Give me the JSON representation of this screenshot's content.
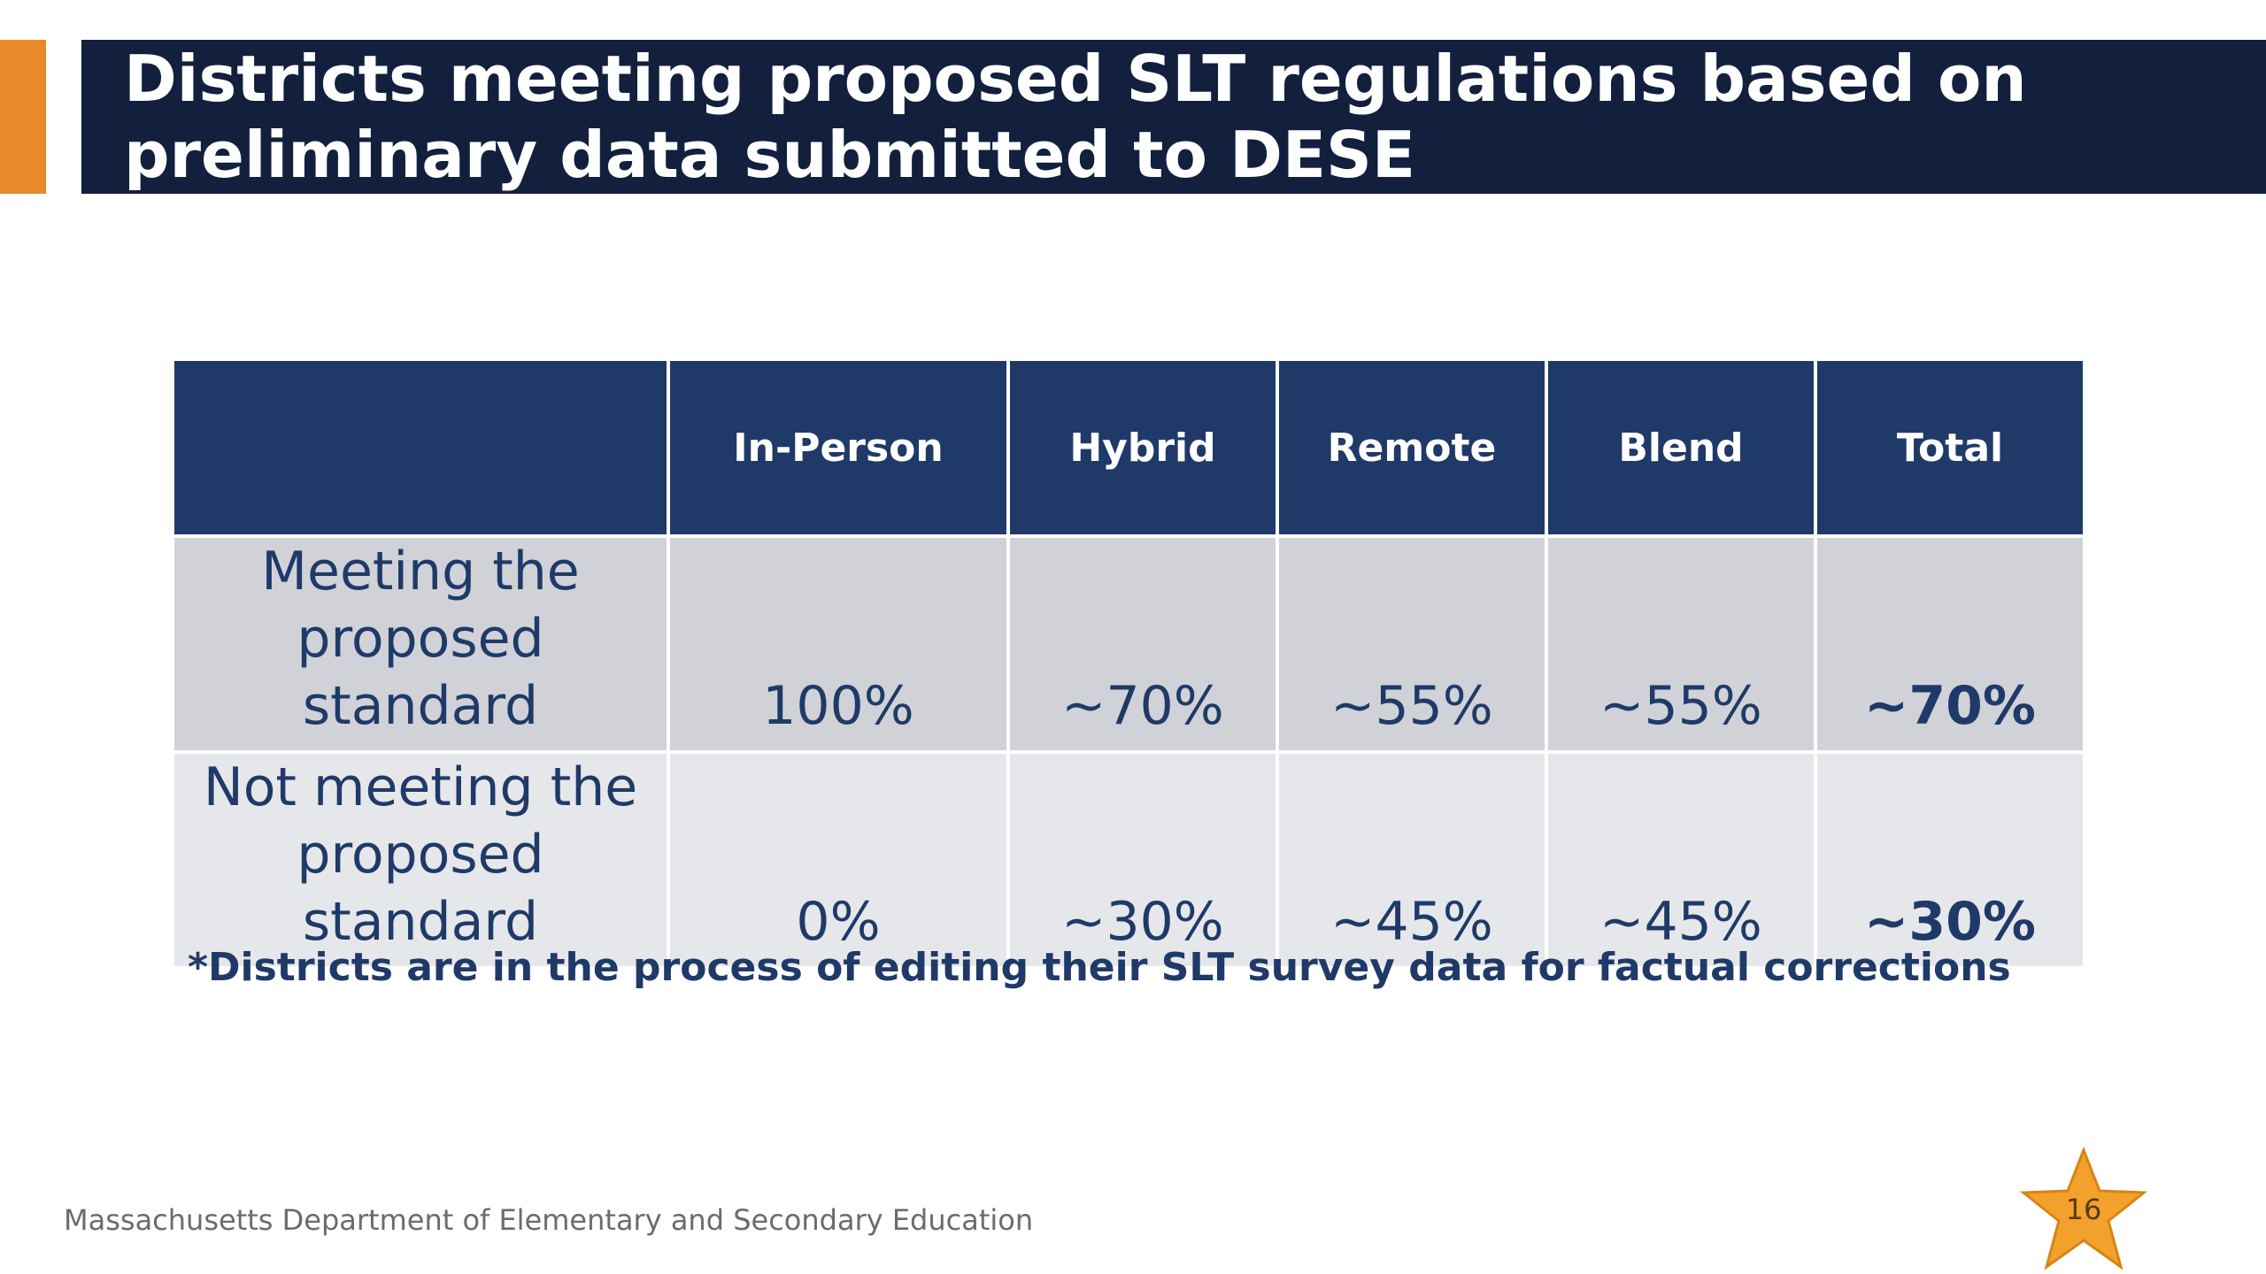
{
  "slide": {
    "title": "Districts meeting proposed SLT regulations based on\npreliminary data submitted to DESE",
    "footnote": "*Districts are in the process of editing their SLT survey data for factual corrections",
    "footer": "Massachusetts Department of Elementary and Secondary Education",
    "page_number": "16"
  },
  "table": {
    "headers": [
      "",
      "In-Person",
      "Hybrid",
      "Remote",
      "Blend",
      "Total"
    ],
    "rows": [
      {
        "label": "Meeting the proposed standard",
        "values": [
          "100%",
          "~70%",
          "~55%",
          "~55%",
          "~70%"
        ]
      },
      {
        "label": "Not meeting the proposed standard",
        "values": [
          "0%",
          "~30%",
          "~45%",
          "~45%",
          "~30%"
        ]
      }
    ]
  },
  "colors": {
    "title_bar": "#12203E",
    "accent": "#E8892A",
    "header_fill": "#1F3A68",
    "row_dark": "#D0D2D7",
    "row_light": "#E6E7EA",
    "star": "#F2A22C"
  },
  "icons": {
    "page_badge": "star-icon"
  }
}
